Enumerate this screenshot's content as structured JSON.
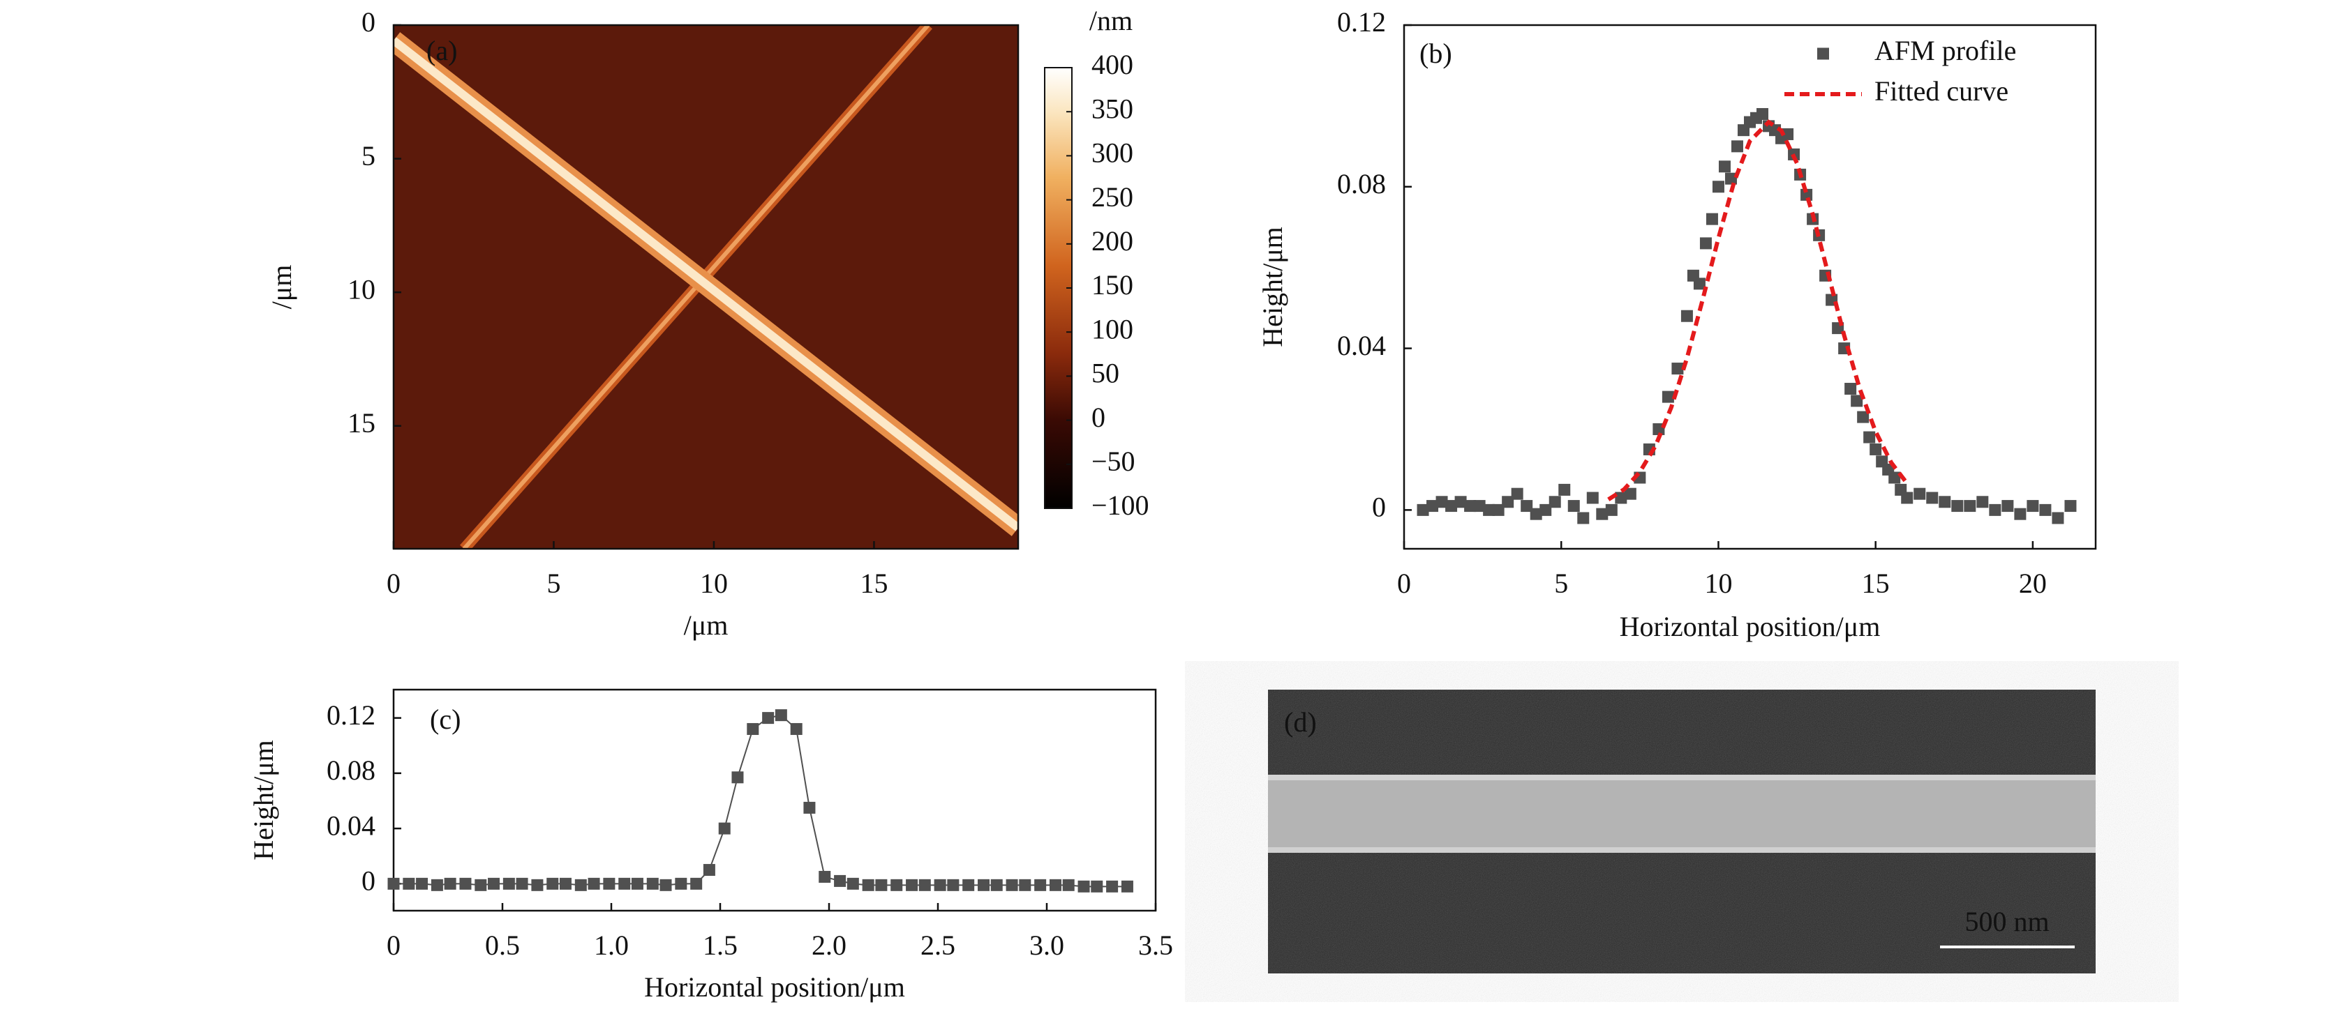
{
  "chart_data": [
    {
      "type": "image",
      "label": "(a)",
      "xlabel": "/μm",
      "ylabel": "/μm",
      "xlim": [
        0,
        19.5
      ],
      "ylim": [
        19.6,
        0
      ],
      "xticks": [
        0,
        5,
        10,
        15
      ],
      "yticks": [
        0,
        5,
        10,
        15
      ],
      "colorbar": {
        "label": "/nm",
        "lim": [
          -100,
          400
        ],
        "ticks": [
          400,
          350,
          300,
          250,
          200,
          150,
          100,
          50,
          0,
          {
            "value": -50,
            "label": "−50"
          },
          {
            "value": -100,
            "label": "−100"
          }
        ]
      }
    },
    {
      "type": "scatter",
      "label": "(b)",
      "xlabel": "Horizontal position/μm",
      "ylabel": "Height/μm",
      "xlim": [
        0,
        22
      ],
      "ylim": [
        -0.0096,
        0.12
      ],
      "xticks": [
        0,
        5,
        10,
        15,
        20
      ],
      "yticks": [
        0,
        0.04,
        0.08,
        0.12
      ],
      "legend": "upper right",
      "series": [
        {
          "name": "AFM profile",
          "color": "#505050",
          "marker": "square",
          "x": [
            0.6,
            0.9,
            1.2,
            1.5,
            1.8,
            2.1,
            2.4,
            2.7,
            3.0,
            3.3,
            3.6,
            3.9,
            4.2,
            4.5,
            4.8,
            5.1,
            5.4,
            5.7,
            6.0,
            6.3,
            6.6,
            6.9,
            7.2,
            7.5,
            7.8,
            8.1,
            8.4,
            8.7,
            9.0,
            9.2,
            9.4,
            9.6,
            9.8,
            10.0,
            10.2,
            10.4,
            10.6,
            10.8,
            11.0,
            11.2,
            11.4,
            11.6,
            11.8,
            12.0,
            12.2,
            12.4,
            12.6,
            12.8,
            13.0,
            13.2,
            13.4,
            13.6,
            13.8,
            14.0,
            14.2,
            14.4,
            14.6,
            14.8,
            15.0,
            15.2,
            15.4,
            15.6,
            15.8,
            16.0,
            16.4,
            16.8,
            17.2,
            17.6,
            18.0,
            18.4,
            18.8,
            19.2,
            19.6,
            20.0,
            20.4,
            20.8,
            21.2
          ],
          "values": [
            0.0,
            0.001,
            0.002,
            0.001,
            0.002,
            0.001,
            0.001,
            0.0,
            0.0,
            0.002,
            0.004,
            0.001,
            -0.001,
            0.0,
            0.002,
            0.005,
            0.001,
            -0.002,
            0.003,
            -0.001,
            0.0,
            0.003,
            0.004,
            0.008,
            0.015,
            0.02,
            0.028,
            0.035,
            0.048,
            0.058,
            0.056,
            0.066,
            0.072,
            0.08,
            0.085,
            0.082,
            0.09,
            0.094,
            0.096,
            0.097,
            0.098,
            0.095,
            0.094,
            0.092,
            0.093,
            0.088,
            0.083,
            0.078,
            0.072,
            0.068,
            0.058,
            0.052,
            0.045,
            0.04,
            0.03,
            0.027,
            0.023,
            0.018,
            0.015,
            0.012,
            0.01,
            0.008,
            0.005,
            0.003,
            0.004,
            0.003,
            0.002,
            0.001,
            0.001,
            0.002,
            0.0,
            0.001,
            -0.001,
            0.001,
            0.0,
            -0.002,
            0.001
          ]
        },
        {
          "name": "Fitted curve",
          "color": "#e41a1c",
          "linestyle": "dashed",
          "x": [
            6.5,
            7,
            7.5,
            8,
            8.5,
            9,
            9.5,
            10,
            10.5,
            11,
            11.6,
            12,
            12.5,
            13,
            13.5,
            14,
            14.5,
            15,
            15.5,
            16
          ],
          "values": [
            0.0026,
            0.0051,
            0.0094,
            0.0159,
            0.0254,
            0.0376,
            0.0521,
            0.0673,
            0.0812,
            0.0913,
            0.096,
            0.0939,
            0.0858,
            0.0732,
            0.0582,
            0.0432,
            0.0299,
            0.0194,
            0.0117,
            0.0066
          ]
        }
      ]
    },
    {
      "type": "line",
      "label": "(c)",
      "xlabel": "Horizontal position/μm",
      "ylabel": "Height/μm",
      "xlim": [
        0,
        3.5
      ],
      "ylim": [
        -0.0195,
        0.1405
      ],
      "xticks": [
        0,
        0.5,
        {
          "value": 1,
          "label": "1.0"
        },
        1.5,
        {
          "value": 2,
          "label": "2.0"
        },
        2.5,
        {
          "value": 3,
          "label": "3.0"
        },
        3.5
      ],
      "yticks": [
        0,
        0.04,
        0.08,
        0.12
      ],
      "color": "#505050",
      "marker": "square",
      "x": [
        0,
        0.07,
        0.13,
        0.2,
        0.26,
        0.33,
        0.4,
        0.46,
        0.53,
        0.59,
        0.66,
        0.73,
        0.79,
        0.86,
        0.92,
        0.99,
        1.06,
        1.12,
        1.19,
        1.25,
        1.32,
        1.39,
        1.45,
        1.52,
        1.58,
        1.65,
        1.72,
        1.78,
        1.85,
        1.91,
        1.98,
        2.05,
        2.11,
        2.18,
        2.24,
        2.31,
        2.38,
        2.44,
        2.51,
        2.57,
        2.64,
        2.71,
        2.77,
        2.84,
        2.9,
        2.97,
        3.04,
        3.1,
        3.17,
        3.23,
        3.3,
        3.37
      ],
      "values": [
        0,
        0,
        0,
        -0.001,
        0,
        0,
        -0.001,
        0,
        0,
        0,
        -0.001,
        0,
        0,
        -0.001,
        0,
        0,
        0,
        0,
        0,
        -0.001,
        0,
        0,
        0.01,
        0.04,
        0.077,
        0.112,
        0.12,
        0.122,
        0.112,
        0.055,
        0.005,
        0.002,
        0,
        -0.001,
        -0.001,
        -0.001,
        -0.001,
        -0.001,
        -0.001,
        -0.001,
        -0.001,
        -0.001,
        -0.001,
        -0.001,
        -0.001,
        -0.001,
        -0.001,
        -0.001,
        -0.002,
        -0.002,
        -0.002,
        -0.002
      ]
    },
    {
      "type": "image",
      "label": "(d)",
      "scalebar": "500 nm"
    }
  ]
}
